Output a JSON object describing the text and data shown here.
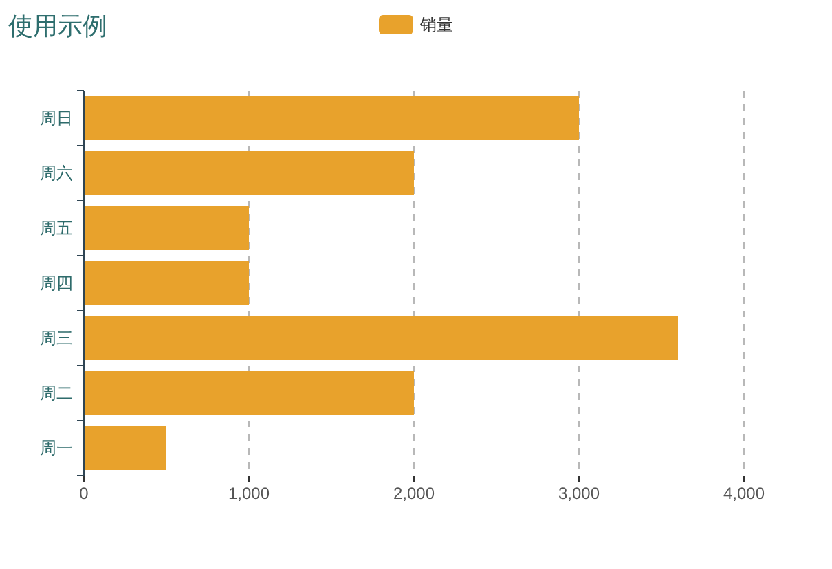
{
  "chart_data": {
    "type": "bar",
    "orientation": "horizontal",
    "title": "使用示例",
    "categories": [
      "周日",
      "周六",
      "周五",
      "周四",
      "周三",
      "周二",
      "周一"
    ],
    "series": [
      {
        "name": "销量",
        "color": "#e8a22c",
        "values": [
          3000,
          2000,
          1000,
          1000,
          3600,
          2000,
          500
        ]
      }
    ],
    "xlim": [
      0,
      4000
    ],
    "xticks": [
      0,
      {
        "value": 1000,
        "label": "1,000"
      },
      {
        "value": 2000,
        "label": "2,000"
      },
      {
        "value": 3000,
        "label": "3,000"
      },
      {
        "value": 4000,
        "label": "4,000"
      }
    ],
    "grid": "x",
    "legend": "top"
  }
}
